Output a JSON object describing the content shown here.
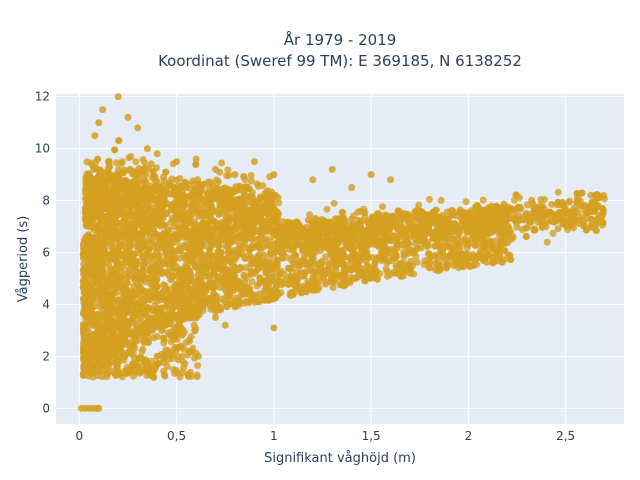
{
  "chart_data": {
    "type": "scatter",
    "title_line1": "År 1979 - 2019",
    "title_line2": "Koordinat (Sweref 99 TM): E 369185, N 6138252",
    "xlabel": "Signifikant våghöjd (m)",
    "ylabel": "Vågperiod (s)",
    "xlim": [
      -0.12,
      2.8
    ],
    "ylim": [
      -0.6,
      12.1
    ],
    "xticks": [
      0,
      0.5,
      1,
      1.5,
      2,
      2.5
    ],
    "xtick_labels": [
      "0",
      "0,5",
      "1",
      "1,5",
      "2",
      "2,5"
    ],
    "yticks": [
      0,
      2,
      4,
      6,
      8,
      10,
      12
    ],
    "ytick_labels": [
      "0",
      "2",
      "4",
      "6",
      "8",
      "10",
      "12"
    ],
    "grid": true,
    "marker_color": "#D4A020",
    "series": [
      {
        "points": [
          [
            0.01,
            0
          ],
          [
            0.03,
            0
          ],
          [
            0.05,
            0
          ],
          [
            0.07,
            0
          ],
          [
            0.09,
            0
          ],
          [
            0.1,
            0
          ],
          [
            0.02,
            1.3
          ],
          [
            0.03,
            1.8
          ],
          [
            0.05,
            1.5
          ],
          [
            0.06,
            2.3
          ],
          [
            0.08,
            1.4
          ],
          [
            0.1,
            2.8
          ],
          [
            0.12,
            1.7
          ],
          [
            0.15,
            3.2
          ],
          [
            0.18,
            2.0
          ],
          [
            0.2,
            3.8
          ],
          [
            0.22,
            2.5
          ],
          [
            0.25,
            4.3
          ],
          [
            0.28,
            2.8
          ],
          [
            0.3,
            4.8
          ],
          [
            0.33,
            3.2
          ],
          [
            0.35,
            5.0
          ],
          [
            0.4,
            3.5
          ],
          [
            0.45,
            5.2
          ],
          [
            0.5,
            4.0
          ],
          [
            0.55,
            5.4
          ],
          [
            0.6,
            4.5
          ],
          [
            0.65,
            5.6
          ],
          [
            0.7,
            4.8
          ],
          [
            0.75,
            5.7
          ],
          [
            0.8,
            5.0
          ],
          [
            0.85,
            5.8
          ],
          [
            0.9,
            5.2
          ],
          [
            0.95,
            5.9
          ],
          [
            1.0,
            5.4
          ],
          [
            1.05,
            6.0
          ],
          [
            1.1,
            5.6
          ],
          [
            1.15,
            6.1
          ],
          [
            1.2,
            5.8
          ],
          [
            1.3,
            6.2
          ],
          [
            1.4,
            6.1
          ],
          [
            1.5,
            6.4
          ],
          [
            1.6,
            6.5
          ],
          [
            1.7,
            6.6
          ],
          [
            1.8,
            6.8
          ],
          [
            1.9,
            7.0
          ],
          [
            2.0,
            7.1
          ],
          [
            2.1,
            7.2
          ],
          [
            2.2,
            7.3
          ],
          [
            2.3,
            7.4
          ],
          [
            2.4,
            7.5
          ],
          [
            2.5,
            7.6
          ],
          [
            2.6,
            7.8
          ],
          [
            2.65,
            8.2
          ],
          [
            0.05,
            8.5
          ],
          [
            0.08,
            10.5
          ],
          [
            0.1,
            11.0
          ],
          [
            0.12,
            11.5
          ],
          [
            0.2,
            12.0
          ],
          [
            0.25,
            11.2
          ],
          [
            0.3,
            10.8
          ],
          [
            0.15,
            9.5
          ],
          [
            0.35,
            10.0
          ],
          [
            0.4,
            9.8
          ],
          [
            0.5,
            9.5
          ],
          [
            0.6,
            9.6
          ],
          [
            0.7,
            9.2
          ],
          [
            0.8,
            9.0
          ],
          [
            0.9,
            9.5
          ],
          [
            1.0,
            9.0
          ],
          [
            1.2,
            8.8
          ],
          [
            1.3,
            9.2
          ],
          [
            1.4,
            8.5
          ],
          [
            1.5,
            9.0
          ],
          [
            1.6,
            8.8
          ],
          [
            0.7,
            3.5
          ],
          [
            0.75,
            3.2
          ],
          [
            1.0,
            3.1
          ],
          [
            0.25,
            7.0
          ],
          [
            0.3,
            8.0
          ],
          [
            0.45,
            7.5
          ],
          [
            0.55,
            8.5
          ],
          [
            0.65,
            7.8
          ],
          [
            0.85,
            7.2
          ]
        ]
      }
    ]
  }
}
